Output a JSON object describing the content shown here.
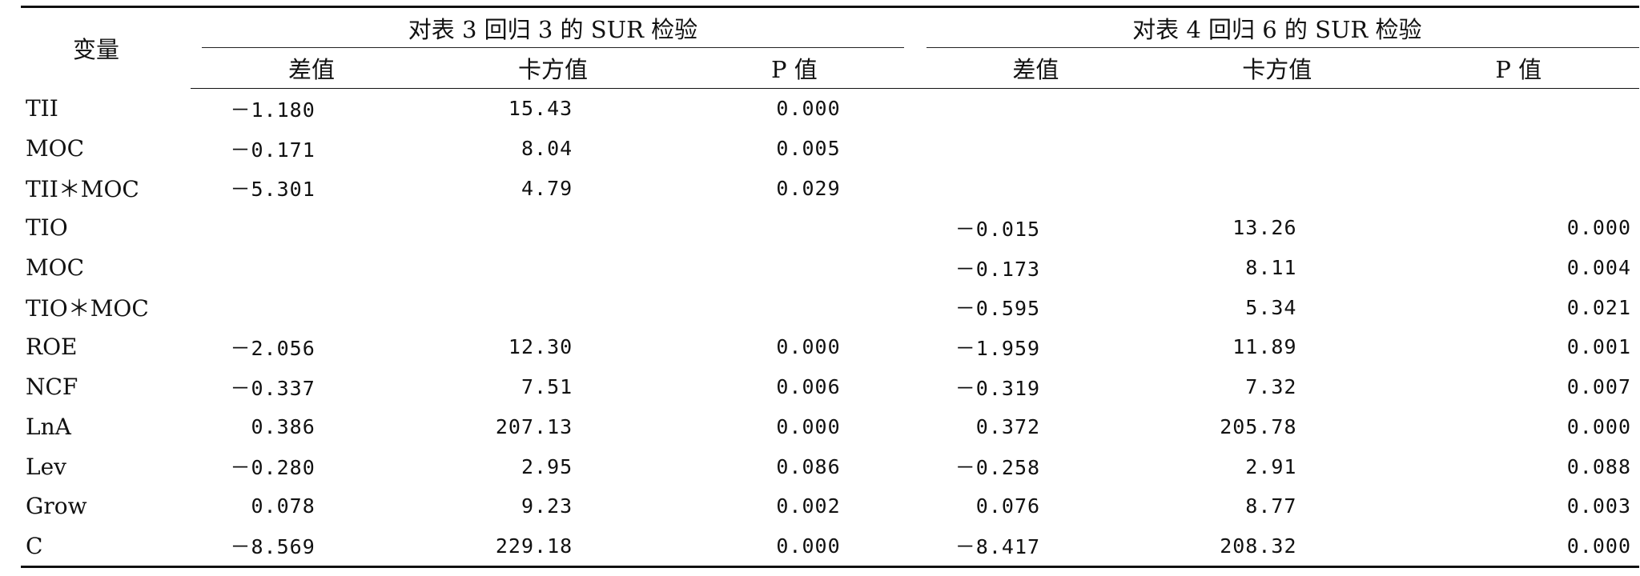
{
  "header": {
    "variable": "变量",
    "group1": "对表 3 回归 3 的 SUR 检验",
    "group2": "对表 4 回归 6 的 SUR 检验",
    "sub": [
      "差值",
      "卡方值",
      "P 值",
      "差值",
      "卡方值",
      "P 值"
    ]
  },
  "rows": [
    {
      "name": "TII",
      "cells": [
        "－1.180",
        "15.43",
        "0.000",
        "",
        "",
        ""
      ]
    },
    {
      "name": "MOC",
      "cells": [
        "－0.171",
        "8.04",
        "0.005",
        "",
        "",
        ""
      ]
    },
    {
      "name": "TII＊MOC",
      "cells": [
        "－5.301",
        "4.79",
        "0.029",
        "",
        "",
        ""
      ]
    },
    {
      "name": "TIO",
      "cells": [
        "",
        "",
        "",
        "－0.015",
        "13.26",
        "0.000"
      ]
    },
    {
      "name": "MOC",
      "cells": [
        "",
        "",
        "",
        "－0.173",
        "8.11",
        "0.004"
      ]
    },
    {
      "name": "TIO＊MOC",
      "cells": [
        "",
        "",
        "",
        "－0.595",
        "5.34",
        "0.021"
      ]
    },
    {
      "name": "ROE",
      "cells": [
        "－2.056",
        "12.30",
        "0.000",
        "－1.959",
        "11.89",
        "0.001"
      ]
    },
    {
      "name": "NCF",
      "cells": [
        "－0.337",
        "7.51",
        "0.006",
        "－0.319",
        "7.32",
        "0.007"
      ]
    },
    {
      "name": "LnA",
      "cells": [
        "0.386",
        "207.13",
        "0.000",
        "0.372",
        "205.78",
        "0.000"
      ]
    },
    {
      "name": "Lev",
      "cells": [
        "－0.280",
        "2.95",
        "0.086",
        "－0.258",
        "2.91",
        "0.088"
      ]
    },
    {
      "name": "Grow",
      "cells": [
        "0.078",
        "9.23",
        "0.002",
        "0.076",
        "8.77",
        "0.003"
      ]
    },
    {
      "name": "C",
      "cells": [
        "－8.569",
        "229.18",
        "0.000",
        "－8.417",
        "208.32",
        "0.000"
      ]
    }
  ]
}
